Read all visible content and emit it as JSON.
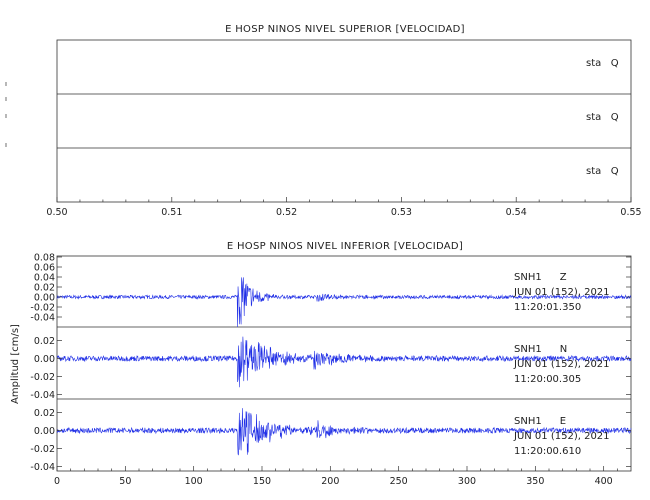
{
  "chart_data": [
    {
      "type": "line",
      "title": "E HOSP NINOS NIVEL SUPERIOR [VELOCIDAD]",
      "xlim": [
        0.5,
        0.55
      ],
      "xticks": [
        "0.50",
        "0.51",
        "0.52",
        "0.53",
        "0.54",
        "0.55"
      ],
      "channels": [
        {
          "label": "sta   Q",
          "values": []
        },
        {
          "label": "sta   Q",
          "values": []
        },
        {
          "label": "sta   Q",
          "values": []
        }
      ]
    },
    {
      "type": "line",
      "title": "E HOSP NINOS NIVEL INFERIOR [VELOCIDAD]",
      "ylabel": "Amplitud [cm/s]",
      "xlim": [
        0,
        420
      ],
      "xticks": [
        "0",
        "50",
        "100",
        "150",
        "200",
        "250",
        "300",
        "350",
        "400"
      ],
      "color": "#1f2ee6",
      "channels": [
        {
          "station": "SNH1",
          "component": "Z",
          "date": "JUN 01 (152), 2021",
          "time": "11:20:01.350",
          "ylim": [
            -0.06,
            0.08
          ],
          "yticks": [
            "0.08",
            "0.06",
            "0.04",
            "0.02",
            "0.00",
            "-0.02",
            "-0.04"
          ],
          "yvalues": [
            0.08,
            0.06,
            0.04,
            0.02,
            0.0,
            -0.02,
            -0.04
          ],
          "noise": 0.0035,
          "events": [
            {
              "t": 132,
              "amp": 0.07,
              "decay": 9
            },
            {
              "t": 190,
              "amp": 0.008,
              "decay": 12
            }
          ]
        },
        {
          "station": "SNH1",
          "component": "N",
          "date": "JUN 01 (152), 2021",
          "time": "11:20:00.305",
          "ylim": [
            -0.045,
            0.035
          ],
          "yticks": [
            "0.02",
            "0.00",
            "-0.02",
            "-0.04"
          ],
          "yvalues": [
            0.02,
            0.0,
            -0.02,
            -0.04
          ],
          "noise": 0.003,
          "events": [
            {
              "t": 132,
              "amp": 0.035,
              "decay": 20
            },
            {
              "t": 188,
              "amp": 0.012,
              "decay": 18
            }
          ]
        },
        {
          "station": "SNH1",
          "component": "E",
          "date": "JUN 01 (152), 2021",
          "time": "11:20:00.610",
          "ylim": [
            -0.045,
            0.035
          ],
          "yticks": [
            "0.02",
            "0.00",
            "-0.02",
            "-0.04"
          ],
          "yvalues": [
            0.02,
            0.0,
            -0.02,
            -0.04
          ],
          "noise": 0.003,
          "events": [
            {
              "t": 132,
              "amp": 0.035,
              "decay": 20
            },
            {
              "t": 190,
              "amp": 0.01,
              "decay": 14
            }
          ]
        }
      ]
    }
  ]
}
